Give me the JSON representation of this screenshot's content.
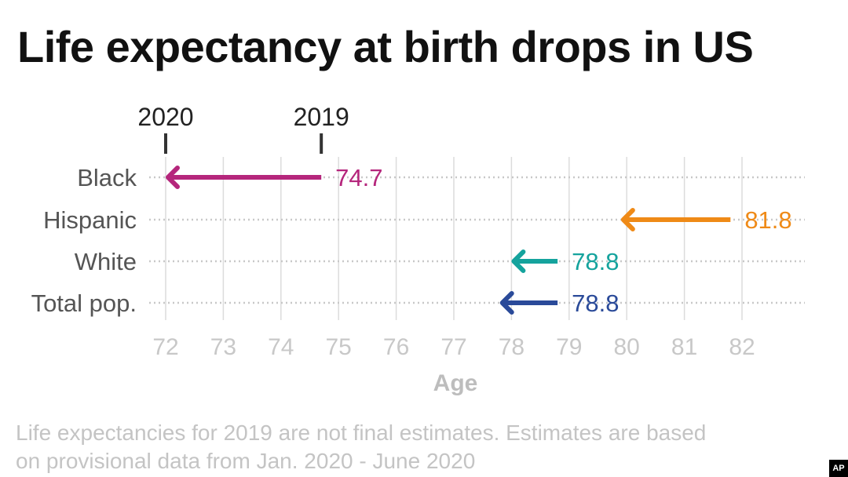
{
  "chart_data": {
    "type": "arrow-dumbbell",
    "title": "Life expectancy at birth drops in US",
    "xlabel": "Age",
    "ylabel": "",
    "xlim": [
      72,
      82
    ],
    "xticks": [
      72,
      73,
      74,
      75,
      76,
      77,
      78,
      79,
      80,
      81,
      82
    ],
    "markers": [
      {
        "label": "2020",
        "value": 72
      },
      {
        "label": "2019",
        "value": 74.7
      }
    ],
    "categories": [
      "Black",
      "Hispanic",
      "White",
      "Total pop."
    ],
    "series": [
      {
        "name": "2019",
        "values": [
          74.7,
          81.8,
          78.8,
          78.8
        ]
      },
      {
        "name": "2020",
        "values": [
          72.0,
          79.9,
          78.0,
          77.8
        ]
      }
    ],
    "value_labels": [
      "74.7",
      "81.8",
      "78.8",
      "78.8"
    ],
    "colors": [
      "#b5267c",
      "#ef8a17",
      "#15a39d",
      "#2a4a99"
    ],
    "grid": true,
    "footnote": "Life expectancies for 2019 are not final estimates. Estimates are based\non provisional data from Jan. 2020 - June 2020"
  },
  "credit": "AP"
}
